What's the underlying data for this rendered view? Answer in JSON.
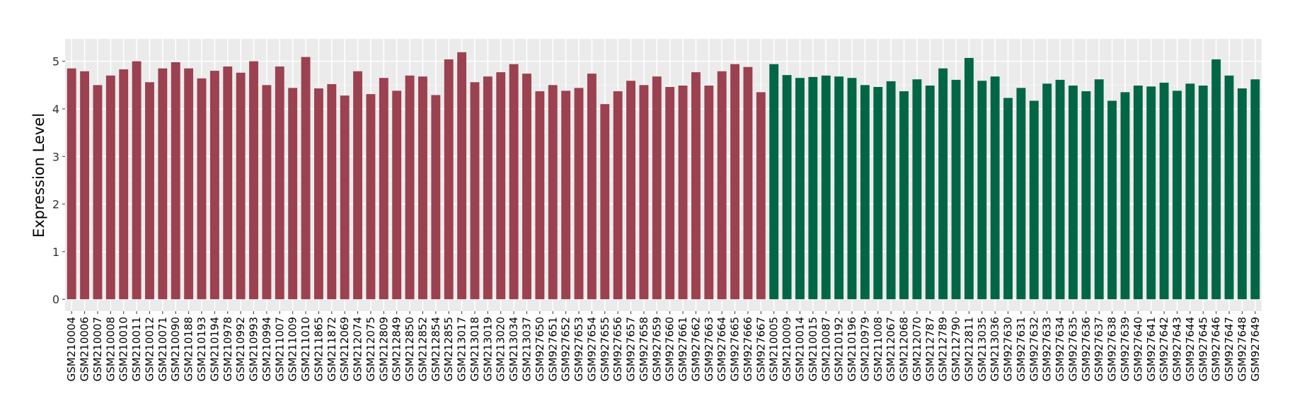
{
  "chart_data": {
    "type": "bar",
    "title": "",
    "xlabel": "",
    "ylabel": "Expression Level",
    "ylim": [
      -0.25,
      5.47
    ],
    "yticks": [
      0,
      1,
      2,
      3,
      4,
      5
    ],
    "grid": true,
    "legend": "none",
    "colors": {
      "group1": "#9B4150",
      "group2": "#006646",
      "panel": "#EBEBEB",
      "grid": "#FFFFFF"
    },
    "categories": [
      "GSM210004",
      "GSM210006",
      "GSM210007",
      "GSM210008",
      "GSM210010",
      "GSM210011",
      "GSM210012",
      "GSM210071",
      "GSM210090",
      "GSM210188",
      "GSM210193",
      "GSM210194",
      "GSM210978",
      "GSM210992",
      "GSM210993",
      "GSM210994",
      "GSM211007",
      "GSM211009",
      "GSM211010",
      "GSM211865",
      "GSM211872",
      "GSM212069",
      "GSM212074",
      "GSM212075",
      "GSM212809",
      "GSM212849",
      "GSM212850",
      "GSM212852",
      "GSM212854",
      "GSM212855",
      "GSM213017",
      "GSM213018",
      "GSM213019",
      "GSM213020",
      "GSM213034",
      "GSM213037",
      "GSM927650",
      "GSM927651",
      "GSM927652",
      "GSM927653",
      "GSM927654",
      "GSM927655",
      "GSM927656",
      "GSM927657",
      "GSM927658",
      "GSM927659",
      "GSM927660",
      "GSM927661",
      "GSM927662",
      "GSM927663",
      "GSM927664",
      "GSM927665",
      "GSM927666",
      "GSM927667",
      "GSM210005",
      "GSM210009",
      "GSM210014",
      "GSM210015",
      "GSM210087",
      "GSM210192",
      "GSM210196",
      "GSM210979",
      "GSM211008",
      "GSM212067",
      "GSM212068",
      "GSM212070",
      "GSM212787",
      "GSM212789",
      "GSM212790",
      "GSM212811",
      "GSM213035",
      "GSM213036",
      "GSM927630",
      "GSM927631",
      "GSM927632",
      "GSM927633",
      "GSM927634",
      "GSM927635",
      "GSM927636",
      "GSM927637",
      "GSM927638",
      "GSM927639",
      "GSM927640",
      "GSM927641",
      "GSM927642",
      "GSM927643",
      "GSM927644",
      "GSM927645",
      "GSM927646",
      "GSM927647",
      "GSM927648",
      "GSM927649"
    ],
    "values": [
      4.85,
      4.79,
      4.5,
      4.7,
      4.83,
      5.0,
      4.56,
      4.85,
      4.98,
      4.85,
      4.64,
      4.8,
      4.89,
      4.76,
      5.0,
      4.5,
      4.89,
      4.44,
      5.09,
      4.43,
      4.52,
      4.28,
      4.79,
      4.31,
      4.65,
      4.38,
      4.7,
      4.68,
      4.29,
      5.04,
      5.19,
      4.56,
      4.68,
      4.77,
      4.94,
      4.74,
      4.37,
      4.5,
      4.38,
      4.44,
      4.74,
      4.1,
      4.37,
      4.59,
      4.5,
      4.68,
      4.46,
      4.49,
      4.77,
      4.49,
      4.79,
      4.94,
      4.88,
      4.35,
      4.94,
      4.71,
      4.65,
      4.67,
      4.7,
      4.68,
      4.65,
      4.5,
      4.46,
      4.58,
      4.37,
      4.62,
      4.49,
      4.85,
      4.61,
      5.07,
      4.59,
      4.68,
      4.23,
      4.44,
      4.17,
      4.53,
      4.61,
      4.49,
      4.37,
      4.62,
      4.17,
      4.35,
      4.49,
      4.47,
      4.55,
      4.38,
      4.53,
      4.49,
      5.04,
      4.7,
      4.43,
      4.62
    ],
    "groups": [
      "group1",
      "group1",
      "group1",
      "group1",
      "group1",
      "group1",
      "group1",
      "group1",
      "group1",
      "group1",
      "group1",
      "group1",
      "group1",
      "group1",
      "group1",
      "group1",
      "group1",
      "group1",
      "group1",
      "group1",
      "group1",
      "group1",
      "group1",
      "group1",
      "group1",
      "group1",
      "group1",
      "group1",
      "group1",
      "group1",
      "group1",
      "group1",
      "group1",
      "group1",
      "group1",
      "group1",
      "group1",
      "group1",
      "group1",
      "group1",
      "group1",
      "group1",
      "group1",
      "group1",
      "group1",
      "group1",
      "group1",
      "group1",
      "group1",
      "group1",
      "group1",
      "group1",
      "group1",
      "group1",
      "group2",
      "group2",
      "group2",
      "group2",
      "group2",
      "group2",
      "group2",
      "group2",
      "group2",
      "group2",
      "group2",
      "group2",
      "group2",
      "group2",
      "group2",
      "group2",
      "group2",
      "group2",
      "group2",
      "group2",
      "group2",
      "group2",
      "group2",
      "group2",
      "group2",
      "group2",
      "group2",
      "group2",
      "group2",
      "group2",
      "group2",
      "group2",
      "group2",
      "group2",
      "group2",
      "group2",
      "group2",
      "group2"
    ]
  }
}
